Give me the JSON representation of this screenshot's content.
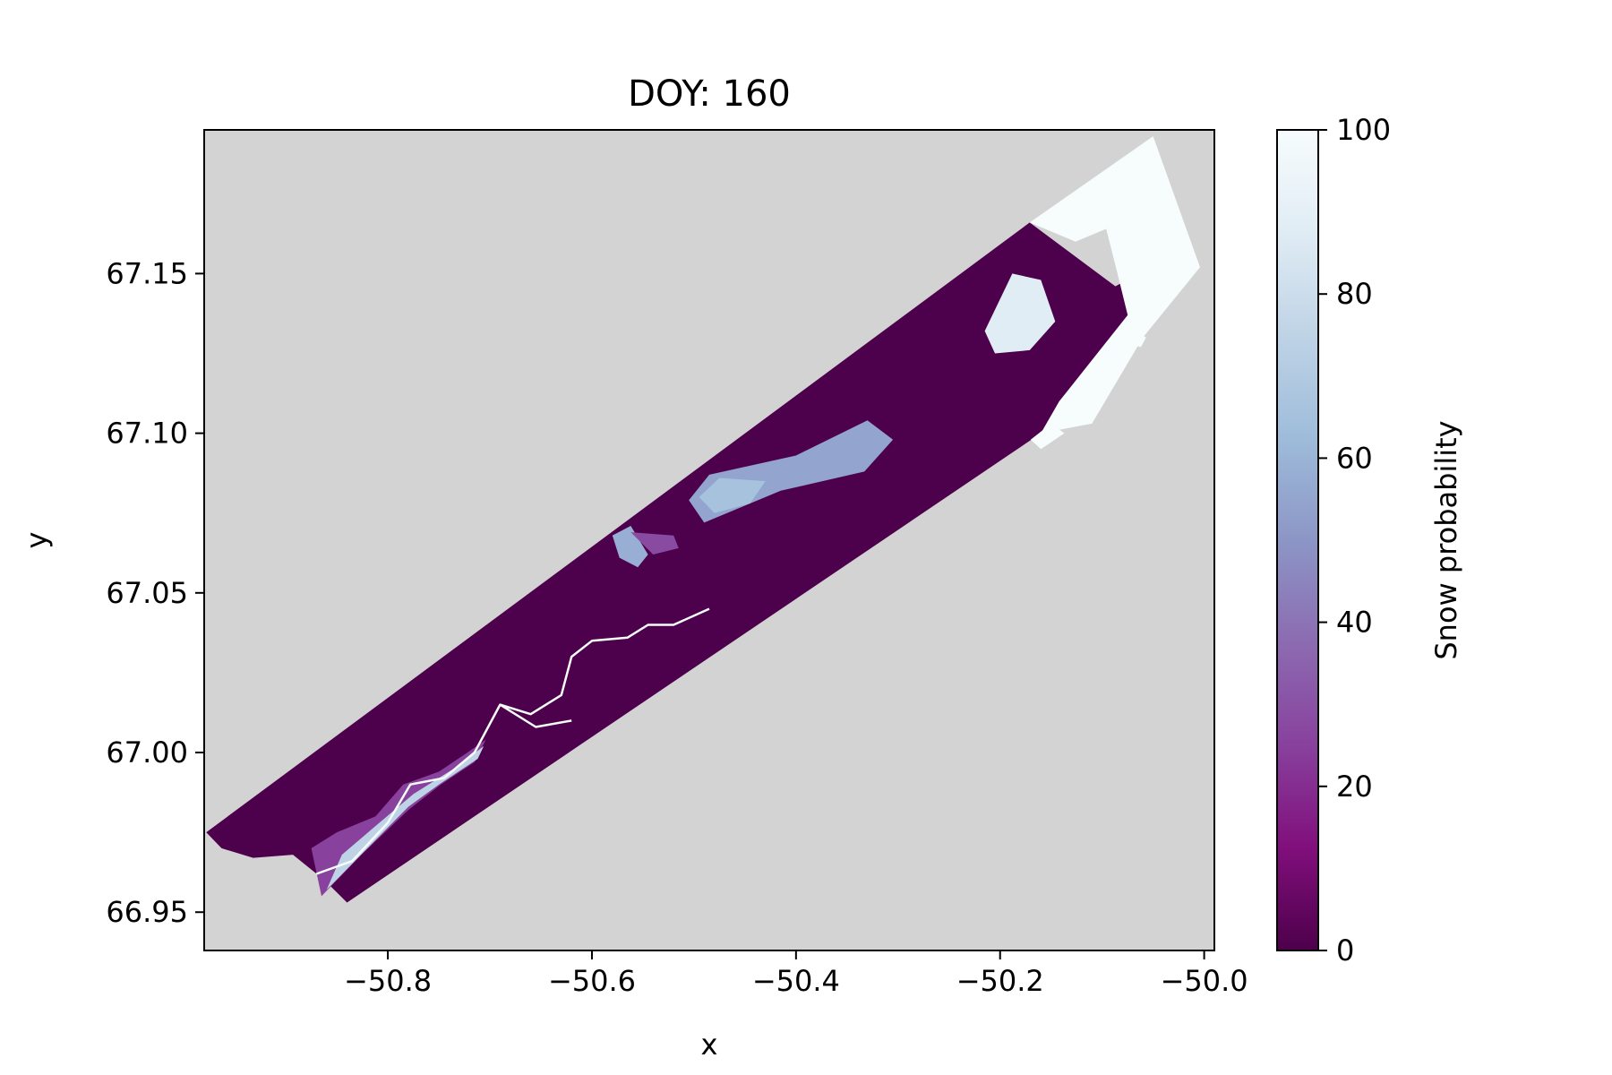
{
  "chart_data": {
    "type": "heatmap",
    "title": "DOY: 160",
    "xlabel": "x",
    "ylabel": "y",
    "xlim": [
      -50.98,
      -49.99
    ],
    "ylim": [
      66.938,
      67.195
    ],
    "x_ticks": [
      -50.8,
      -50.6,
      -50.4,
      -50.2,
      -50.0
    ],
    "x_tick_labels": [
      "−50.8",
      "−50.6",
      "−50.4",
      "−50.2",
      "−50.0"
    ],
    "y_ticks": [
      66.95,
      67.0,
      67.05,
      67.1,
      67.15
    ],
    "y_tick_labels": [
      "66.95",
      "67.00",
      "67.05",
      "67.10",
      "67.15"
    ],
    "grid": false,
    "background_color": "#d3d3d3",
    "colormap": "BuPu_r",
    "colorbar": {
      "label": "Snow probability",
      "range": [
        0,
        100
      ],
      "ticks": [
        0,
        20,
        40,
        60,
        80,
        100
      ],
      "tick_labels": [
        "0",
        "20",
        "40",
        "60",
        "80",
        "100"
      ],
      "stops": [
        {
          "value": 0,
          "color": "#4d004b"
        },
        {
          "value": 12.5,
          "color": "#810f7c"
        },
        {
          "value": 25,
          "color": "#88419d"
        },
        {
          "value": 37.5,
          "color": "#8c6bb1"
        },
        {
          "value": 50,
          "color": "#8c96c6"
        },
        {
          "value": 62.5,
          "color": "#9ebcda"
        },
        {
          "value": 75,
          "color": "#bfd3e6"
        },
        {
          "value": 87.5,
          "color": "#e0ecf4"
        },
        {
          "value": 100,
          "color": "#f7fcfd"
        }
      ]
    },
    "swath": {
      "value": 0,
      "polygon": [
        [
          -50.978,
          66.975
        ],
        [
          -50.171,
          67.166
        ],
        [
          -50.087,
          67.146
        ],
        [
          -50.02,
          67.158
        ],
        [
          -50.142,
          67.11
        ],
        [
          -50.16,
          67.1
        ],
        [
          -50.84,
          66.953
        ],
        [
          -50.862,
          66.96
        ],
        [
          -50.893,
          66.968
        ],
        [
          -50.932,
          66.967
        ],
        [
          -50.963,
          66.97
        ]
      ]
    },
    "features": [
      {
        "name": "snow-corner-ne",
        "value": 100,
        "polygon": [
          [
            -50.171,
            67.166
          ],
          [
            -50.05,
            67.193
          ],
          [
            -50.004,
            67.152
          ],
          [
            -50.06,
            67.13
          ],
          [
            -50.11,
            67.103
          ],
          [
            -50.16,
            67.1
          ],
          [
            -50.142,
            67.11
          ],
          [
            -50.075,
            67.137
          ],
          [
            -50.085,
            67.15
          ],
          [
            -50.096,
            67.164
          ],
          [
            -50.126,
            67.16
          ]
        ]
      },
      {
        "name": "snow-patch-north",
        "value": 88,
        "polygon": [
          [
            -50.215,
            67.132
          ],
          [
            -50.188,
            67.15
          ],
          [
            -50.16,
            67.148
          ],
          [
            -50.146,
            67.135
          ],
          [
            -50.171,
            67.126
          ],
          [
            -50.205,
            67.125
          ]
        ]
      },
      {
        "name": "snow-patch-east-1",
        "value": 100,
        "polygon": [
          [
            -50.17,
            67.098
          ],
          [
            -50.15,
            67.103
          ],
          [
            -50.137,
            67.1
          ],
          [
            -50.16,
            67.095
          ]
        ]
      },
      {
        "name": "snow-patch-east-2",
        "value": 100,
        "polygon": [
          [
            -50.07,
            67.133
          ],
          [
            -50.057,
            67.13
          ],
          [
            -50.062,
            67.127
          ],
          [
            -50.076,
            67.128
          ]
        ]
      },
      {
        "name": "snow-patch-central",
        "value": 55,
        "polygon": [
          [
            -50.505,
            67.079
          ],
          [
            -50.485,
            67.087
          ],
          [
            -50.4,
            67.093
          ],
          [
            -50.33,
            67.104
          ],
          [
            -50.305,
            67.098
          ],
          [
            -50.333,
            67.088
          ],
          [
            -50.415,
            67.082
          ],
          [
            -50.49,
            67.072
          ]
        ]
      },
      {
        "name": "snow-patch-central-core",
        "value": 66,
        "polygon": [
          [
            -50.495,
            67.08
          ],
          [
            -50.475,
            67.086
          ],
          [
            -50.43,
            67.085
          ],
          [
            -50.445,
            67.078
          ],
          [
            -50.48,
            67.075
          ]
        ]
      },
      {
        "name": "snow-patch-west",
        "value": 58,
        "polygon": [
          [
            -50.58,
            67.068
          ],
          [
            -50.562,
            67.071
          ],
          [
            -50.545,
            67.062
          ],
          [
            -50.555,
            67.058
          ],
          [
            -50.573,
            67.061
          ]
        ]
      },
      {
        "name": "snow-patch-west-fringe",
        "value": 28,
        "polygon": [
          [
            -50.562,
            67.069
          ],
          [
            -50.52,
            67.068
          ],
          [
            -50.515,
            67.064
          ],
          [
            -50.54,
            67.062
          ]
        ]
      },
      {
        "name": "river-braid-fringe",
        "value": 25,
        "polygon": [
          [
            -50.865,
            66.955
          ],
          [
            -50.826,
            66.968
          ],
          [
            -50.78,
            66.982
          ],
          [
            -50.748,
            66.99
          ],
          [
            -50.715,
            66.997
          ],
          [
            -50.704,
            67.004
          ],
          [
            -50.722,
            67.0
          ],
          [
            -50.75,
            66.994
          ],
          [
            -50.785,
            66.99
          ],
          [
            -50.812,
            66.98
          ],
          [
            -50.85,
            66.975
          ],
          [
            -50.875,
            66.97
          ]
        ]
      },
      {
        "name": "river-braid-core",
        "value": 75,
        "polygon": [
          [
            -50.86,
            66.957
          ],
          [
            -50.82,
            66.97
          ],
          [
            -50.78,
            66.983
          ],
          [
            -50.75,
            66.99
          ],
          [
            -50.712,
            66.998
          ],
          [
            -50.706,
            67.002
          ],
          [
            -50.735,
            66.995
          ],
          [
            -50.775,
            66.987
          ],
          [
            -50.812,
            66.977
          ],
          [
            -50.845,
            66.968
          ]
        ]
      }
    ],
    "rivers": [
      {
        "name": "river-channel",
        "value": 100,
        "points": [
          [
            -50.87,
            66.962
          ],
          [
            -50.835,
            66.966
          ],
          [
            -50.8,
            66.978
          ],
          [
            -50.778,
            66.99
          ],
          [
            -50.745,
            66.992
          ],
          [
            -50.715,
            67.0
          ],
          [
            -50.705,
            67.006
          ],
          [
            -50.69,
            67.015
          ],
          [
            -50.66,
            67.012
          ],
          [
            -50.63,
            67.018
          ],
          [
            -50.62,
            67.03
          ],
          [
            -50.6,
            67.035
          ],
          [
            -50.565,
            67.036
          ],
          [
            -50.545,
            67.04
          ],
          [
            -50.52,
            67.04
          ],
          [
            -50.485,
            67.045
          ]
        ]
      },
      {
        "name": "river-branch",
        "value": 100,
        "points": [
          [
            -50.69,
            67.015
          ],
          [
            -50.655,
            67.008
          ],
          [
            -50.62,
            67.01
          ]
        ]
      }
    ]
  }
}
